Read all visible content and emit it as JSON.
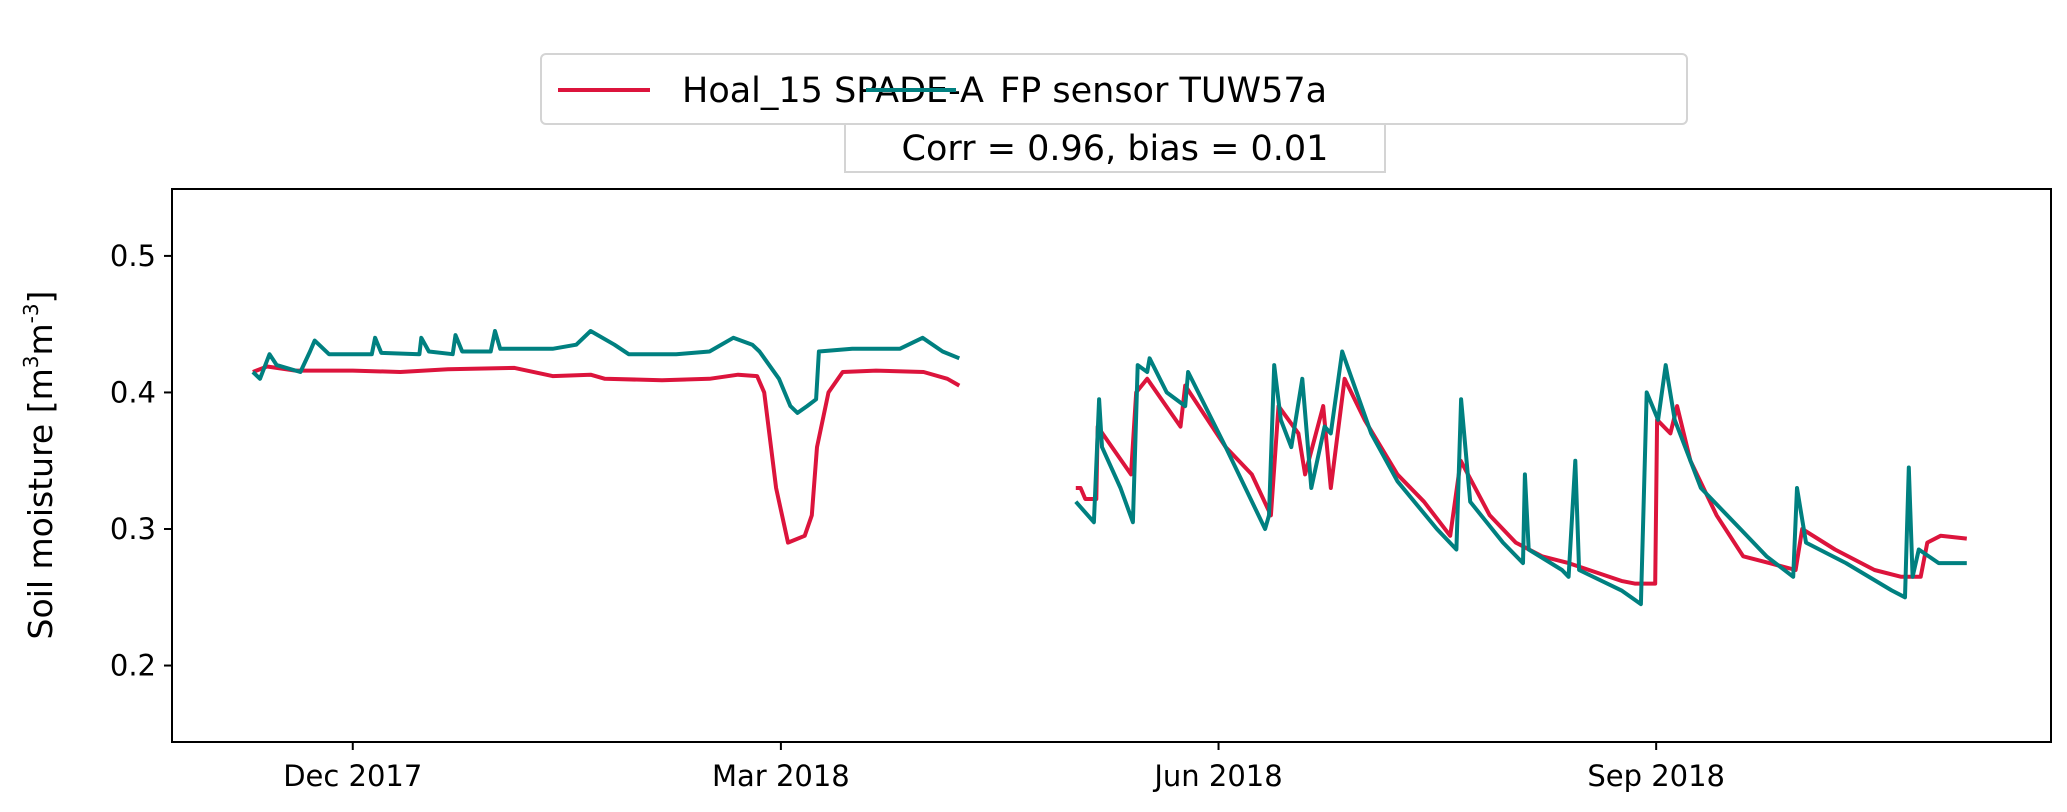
{
  "chart_data": {
    "type": "line",
    "title": "",
    "annotation": "Corr = 0.96, bias = 0.01",
    "xlabel": "",
    "ylabel": "Soil moisture [m³m⁻³]",
    "ylabel_parts": {
      "main": "Soil moisture [m",
      "sup1": "3",
      "mid": "m",
      "sup2": "-3",
      "end": "]"
    },
    "x_unit": "days since 2017-12-01",
    "xlim": [
      -38,
      357
    ],
    "ylim": [
      0.144,
      0.549
    ],
    "grid": false,
    "legend_placement": "top-center, above axes",
    "xticks": [
      {
        "day": 0,
        "label": "Dec 2017"
      },
      {
        "day": 90,
        "label": "Mar 2018"
      },
      {
        "day": 182,
        "label": "Jun 2018"
      },
      {
        "day": 274,
        "label": "Sep 2018"
      }
    ],
    "yticks": [
      {
        "value": 0.2,
        "label": "0.2"
      },
      {
        "value": 0.3,
        "label": "0.3"
      },
      {
        "value": 0.4,
        "label": "0.4"
      },
      {
        "value": 0.5,
        "label": "0.5"
      }
    ],
    "series": [
      {
        "name": "Hoal_15 SPADE-A",
        "color": "#DC143C",
        "segments": [
          [
            [
              -21,
              0.415
            ],
            [
              -18,
              0.419
            ],
            [
              -12,
              0.416
            ],
            [
              0,
              0.416
            ],
            [
              10,
              0.415
            ],
            [
              20,
              0.417
            ],
            [
              34,
              0.418
            ],
            [
              42,
              0.412
            ],
            [
              50,
              0.413
            ],
            [
              53,
              0.41
            ],
            [
              65,
              0.409
            ],
            [
              75,
              0.41
            ],
            [
              81,
              0.413
            ],
            [
              85,
              0.412
            ],
            [
              86.5,
              0.4
            ],
            [
              89,
              0.33
            ],
            [
              91.5,
              0.29
            ],
            [
              95,
              0.295
            ],
            [
              96.5,
              0.31
            ],
            [
              97.6,
              0.36
            ],
            [
              100,
              0.4
            ],
            [
              103,
              0.415
            ],
            [
              110,
              0.416
            ],
            [
              120,
              0.415
            ],
            [
              125,
              0.41
            ],
            [
              127.5,
              0.405
            ]
          ],
          [
            [
              152,
              0.33
            ],
            [
              153,
              0.33
            ],
            [
              154,
              0.322
            ],
            [
              156.3,
              0.322
            ],
            [
              156.6,
              0.375
            ],
            [
              163.6,
              0.34
            ],
            [
              164.7,
              0.4
            ],
            [
              167,
              0.41
            ],
            [
              171,
              0.39
            ],
            [
              174,
              0.375
            ],
            [
              175,
              0.405
            ],
            [
              183.5,
              0.36
            ],
            [
              189,
              0.34
            ],
            [
              193,
              0.31
            ],
            [
              194.6,
              0.39
            ],
            [
              198.8,
              0.37
            ],
            [
              200.2,
              0.34
            ],
            [
              204,
              0.39
            ],
            [
              205.6,
              0.33
            ],
            [
              208.5,
              0.41
            ],
            [
              212.7,
              0.38
            ],
            [
              219.6,
              0.34
            ],
            [
              225.2,
              0.32
            ],
            [
              230.7,
              0.295
            ],
            [
              232.9,
              0.35
            ],
            [
              239,
              0.31
            ],
            [
              244.5,
              0.29
            ],
            [
              250,
              0.28
            ],
            [
              255.6,
              0.275
            ],
            [
              266.7,
              0.262
            ],
            [
              269.5,
              0.26
            ],
            [
              273.8,
              0.26
            ],
            [
              274.2,
              0.38
            ],
            [
              277,
              0.37
            ],
            [
              278.4,
              0.39
            ],
            [
              281.2,
              0.35
            ],
            [
              286.7,
              0.31
            ],
            [
              292.3,
              0.28
            ],
            [
              297.8,
              0.275
            ],
            [
              303.3,
              0.27
            ],
            [
              304.7,
              0.3
            ],
            [
              311.6,
              0.285
            ],
            [
              319.9,
              0.27
            ],
            [
              325.5,
              0.265
            ],
            [
              329.6,
              0.265
            ],
            [
              331,
              0.29
            ],
            [
              333.8,
              0.295
            ],
            [
              339.3,
              0.293
            ]
          ]
        ]
      },
      {
        "name": "FP sensor TUW57a",
        "color": "#008080",
        "segments": [
          [
            [
              -21,
              0.415
            ],
            [
              -19.5,
              0.41
            ],
            [
              -17.5,
              0.428
            ],
            [
              -16,
              0.42
            ],
            [
              -11,
              0.415
            ],
            [
              -9,
              0.43
            ],
            [
              -8,
              0.438
            ],
            [
              -5,
              0.428
            ],
            [
              4,
              0.428
            ],
            [
              4.7,
              0.44
            ],
            [
              6,
              0.429
            ],
            [
              14,
              0.428
            ],
            [
              14.4,
              0.44
            ],
            [
              16,
              0.43
            ],
            [
              21,
              0.428
            ],
            [
              21.6,
              0.442
            ],
            [
              23,
              0.43
            ],
            [
              29,
              0.43
            ],
            [
              29.9,
              0.445
            ],
            [
              31,
              0.432
            ],
            [
              35,
              0.432
            ],
            [
              42,
              0.432
            ],
            [
              47,
              0.435
            ],
            [
              50,
              0.445
            ],
            [
              55,
              0.435
            ],
            [
              58,
              0.428
            ],
            [
              68,
              0.428
            ],
            [
              75,
              0.43
            ],
            [
              80,
              0.44
            ],
            [
              84,
              0.435
            ],
            [
              85.5,
              0.43
            ],
            [
              89.6,
              0.41
            ],
            [
              92,
              0.39
            ],
            [
              93.5,
              0.385
            ],
            [
              95.5,
              0.39
            ],
            [
              97.4,
              0.395
            ],
            [
              98,
              0.43
            ],
            [
              105,
              0.432
            ],
            [
              115,
              0.432
            ],
            [
              119.8,
              0.44
            ],
            [
              124,
              0.43
            ],
            [
              127.5,
              0.425
            ]
          ],
          [
            [
              152,
              0.32
            ],
            [
              155.8,
              0.305
            ],
            [
              156.9,
              0.395
            ],
            [
              157.5,
              0.36
            ],
            [
              161.4,
              0.33
            ],
            [
              164,
              0.305
            ],
            [
              165,
              0.42
            ],
            [
              167,
              0.415
            ],
            [
              167.5,
              0.425
            ],
            [
              171.1,
              0.4
            ],
            [
              175,
              0.39
            ],
            [
              175.6,
              0.415
            ],
            [
              183.5,
              0.36
            ],
            [
              191.8,
              0.3
            ],
            [
              192.6,
              0.31
            ],
            [
              193.7,
              0.42
            ],
            [
              195.1,
              0.38
            ],
            [
              197.3,
              0.36
            ],
            [
              199.6,
              0.41
            ],
            [
              201.5,
              0.33
            ],
            [
              204.3,
              0.375
            ],
            [
              205.6,
              0.37
            ],
            [
              208,
              0.43
            ],
            [
              214.1,
              0.37
            ],
            [
              219.6,
              0.335
            ],
            [
              227.9,
              0.3
            ],
            [
              232,
              0.285
            ],
            [
              233,
              0.395
            ],
            [
              234.9,
              0.32
            ],
            [
              241.8,
              0.29
            ],
            [
              246,
              0.275
            ],
            [
              246.4,
              0.34
            ],
            [
              247.2,
              0.285
            ],
            [
              254.2,
              0.27
            ],
            [
              255.6,
              0.265
            ],
            [
              257,
              0.35
            ],
            [
              257.8,
              0.27
            ],
            [
              266.7,
              0.255
            ],
            [
              270.8,
              0.245
            ],
            [
              272,
              0.4
            ],
            [
              274.4,
              0.38
            ],
            [
              276,
              0.42
            ],
            [
              277.9,
              0.38
            ],
            [
              283.4,
              0.33
            ],
            [
              291.7,
              0.3
            ],
            [
              297.2,
              0.28
            ],
            [
              302.8,
              0.265
            ],
            [
              303.6,
              0.33
            ],
            [
              305.5,
              0.29
            ],
            [
              313.9,
              0.275
            ],
            [
              323.5,
              0.255
            ],
            [
              326.3,
              0.25
            ],
            [
              327.1,
              0.345
            ],
            [
              327.9,
              0.265
            ],
            [
              329.2,
              0.285
            ],
            [
              333.4,
              0.275
            ],
            [
              339.3,
              0.275
            ]
          ]
        ]
      }
    ]
  }
}
